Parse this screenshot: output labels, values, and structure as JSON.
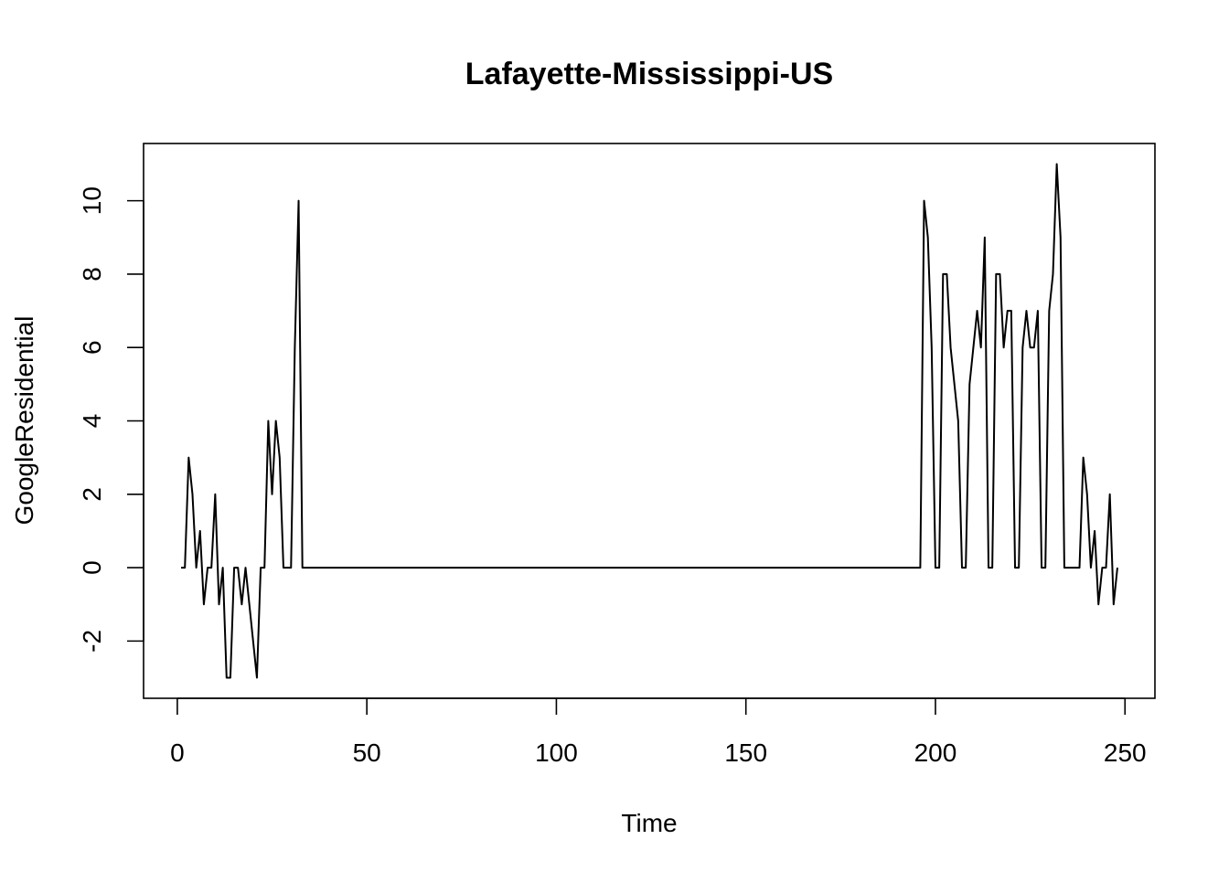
{
  "chart_data": {
    "type": "line",
    "title": "Lafayette-Mississippi-US",
    "xlabel": "Time",
    "ylabel": "GoogleResidential",
    "xlim": [
      -8.9,
      257.9
    ],
    "ylim": [
      -3.56,
      11.56
    ],
    "x_ticks": [
      0,
      50,
      100,
      150,
      200,
      250
    ],
    "y_ticks": [
      -2,
      0,
      2,
      4,
      6,
      8,
      10
    ],
    "x_tick_labels": [
      "0",
      "50",
      "100",
      "150",
      "200",
      "250"
    ],
    "y_tick_labels": [
      "-2",
      "0",
      "2",
      "4",
      "6",
      "8",
      "10"
    ],
    "grid": false,
    "legend": "none",
    "line_color": "#000000",
    "series": [
      {
        "x": [
          1,
          2,
          3,
          4,
          5,
          6,
          7,
          8,
          9,
          10,
          11,
          12,
          13,
          14,
          15,
          16,
          17,
          18,
          19,
          20,
          21,
          22,
          23,
          24,
          25,
          26,
          27,
          28,
          29,
          30,
          31,
          32,
          33,
          34,
          196,
          197,
          198,
          199,
          200,
          201,
          202,
          203,
          204,
          205,
          206,
          207,
          208,
          209,
          210,
          211,
          212,
          213,
          214,
          215,
          216,
          217,
          218,
          219,
          220,
          221,
          222,
          223,
          224,
          225,
          226,
          227,
          228,
          229,
          230,
          231,
          232,
          233,
          234,
          235,
          236,
          237,
          238,
          239,
          240,
          241,
          242,
          243,
          244,
          245,
          246,
          247,
          248
        ],
        "y": [
          0,
          0,
          3,
          2,
          0,
          1,
          -1,
          0,
          0,
          2,
          -1,
          0,
          -3,
          -3,
          0,
          0,
          -1,
          0,
          -1,
          -2,
          -3,
          0,
          0,
          4,
          2,
          4,
          3,
          0,
          0,
          0,
          6,
          10,
          0,
          0,
          0,
          10,
          9,
          6,
          0,
          0,
          8,
          8,
          6,
          5,
          4,
          0,
          0,
          5,
          6,
          7,
          6,
          9,
          0,
          0,
          8,
          8,
          6,
          7,
          7,
          0,
          0,
          6,
          7,
          6,
          6,
          7,
          0,
          0,
          7,
          8,
          11,
          9,
          0,
          0,
          0,
          0,
          0,
          3,
          2,
          0,
          1,
          -1,
          0,
          0,
          2,
          -1,
          0
        ]
      }
    ]
  }
}
